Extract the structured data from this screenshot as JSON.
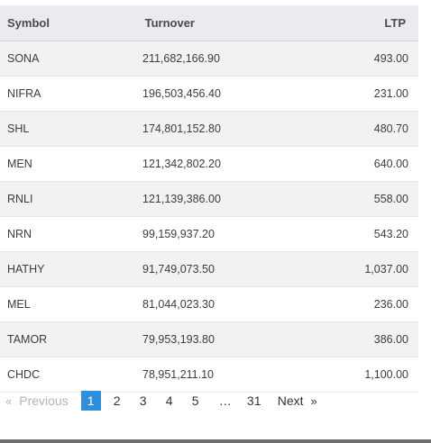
{
  "table": {
    "headers": {
      "symbol": "Symbol",
      "turnover": "Turnover",
      "ltp": "LTP"
    },
    "rows": [
      {
        "symbol": "SONA",
        "turnover": "211,682,166.90",
        "ltp": "493.00"
      },
      {
        "symbol": "NIFRA",
        "turnover": "196,503,456.40",
        "ltp": "231.00"
      },
      {
        "symbol": "SHL",
        "turnover": "174,801,152.80",
        "ltp": "480.70"
      },
      {
        "symbol": "MEN",
        "turnover": "121,342,802.20",
        "ltp": "640.00"
      },
      {
        "symbol": "RNLI",
        "turnover": "121,139,386.00",
        "ltp": "558.00"
      },
      {
        "symbol": "NRN",
        "turnover": "99,159,937.20",
        "ltp": "543.20"
      },
      {
        "symbol": "HATHY",
        "turnover": "91,749,073.50",
        "ltp": "1,037.00"
      },
      {
        "symbol": "MEL",
        "turnover": "81,044,023.30",
        "ltp": "236.00"
      },
      {
        "symbol": "TAMOR",
        "turnover": "79,953,193.80",
        "ltp": "386.00"
      },
      {
        "symbol": "CHDC",
        "turnover": "78,951,211.10",
        "ltp": "1,100.00"
      }
    ]
  },
  "pagination": {
    "prev_arrow": "«",
    "previous_label": "Previous",
    "pages": [
      "1",
      "2",
      "3",
      "4",
      "5"
    ],
    "current_page": "1",
    "ellipsis": "…",
    "last_page": "31",
    "next_label": "Next",
    "next_arrow": "»"
  },
  "colors": {
    "active_page": "#2f8fd8",
    "header_bg": "#e9ebee",
    "stripe_bg": "#f2f2f2"
  }
}
